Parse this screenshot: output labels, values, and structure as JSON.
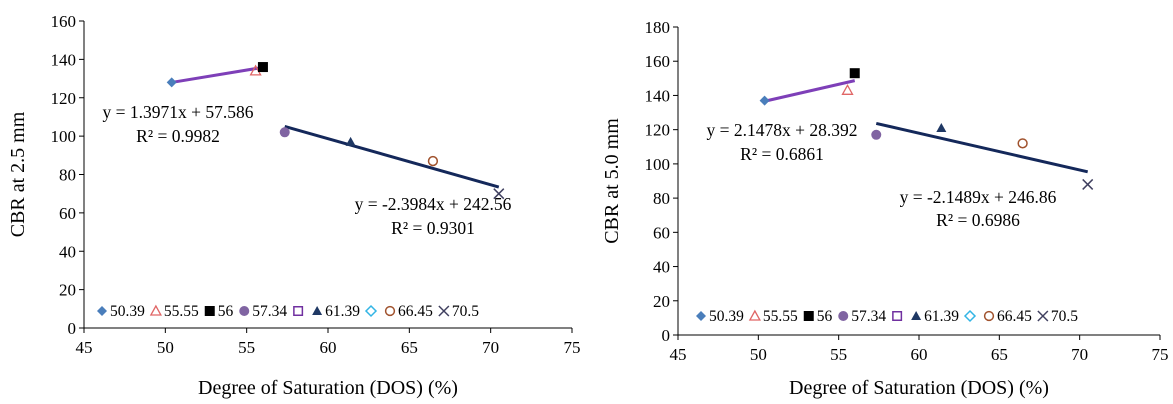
{
  "chart_data": [
    {
      "type": "scatter",
      "xlabel": "Degree of Saturation (DOS) (%)",
      "ylabel": "CBR at 2.5 mm",
      "xlim": [
        45,
        75
      ],
      "ylim": [
        0,
        160
      ],
      "xticks": [
        45,
        50,
        55,
        60,
        65,
        70,
        75
      ],
      "yticks": [
        0,
        20,
        40,
        60,
        80,
        100,
        120,
        140,
        160
      ],
      "grid": false,
      "legend_position": "bottom",
      "series": [
        {
          "name": "50.39",
          "marker": "diamond",
          "color": "#4A7EBB",
          "x": [
            50.39
          ],
          "y": [
            128
          ]
        },
        {
          "name": "55.55",
          "marker": "triangle-open",
          "color": "#E06666",
          "x": [
            55.55
          ],
          "y": [
            134
          ]
        },
        {
          "name": "56",
          "marker": "square",
          "color": "#000000",
          "x": [
            56.0
          ],
          "y": [
            136
          ]
        },
        {
          "name": "57.34",
          "marker": "circle",
          "color": "#8064A2",
          "x": [
            57.34
          ],
          "y": [
            102
          ]
        },
        {
          "name": "",
          "marker": "square-open",
          "color": "#7030A0",
          "x": [],
          "y": []
        },
        {
          "name": "61.39",
          "marker": "triangle",
          "color": "#1F3864",
          "x": [
            61.39
          ],
          "y": [
            97
          ]
        },
        {
          "name": "",
          "marker": "diamond-open",
          "color": "#33B5E5",
          "x": [],
          "y": []
        },
        {
          "name": "66.45",
          "marker": "circle-open",
          "color": "#A0522D",
          "x": [
            66.45
          ],
          "y": [
            87
          ]
        },
        {
          "name": "70.5",
          "marker": "x",
          "color": "#404060",
          "x": [
            70.5
          ],
          "y": [
            70
          ]
        }
      ],
      "trendlines": [
        {
          "slope": 1.3971,
          "intercept": 57.586,
          "x_range": [
            50.39,
            56.0
          ],
          "color": "#7E3FB8"
        },
        {
          "slope": -2.3984,
          "intercept": 242.56,
          "x_range": [
            57.34,
            70.5
          ],
          "color": "#14285A"
        }
      ],
      "annotations": [
        {
          "lines": [
            "y = 1.3971x + 57.586",
            "R² = 0.9982"
          ]
        },
        {
          "lines": [
            "y = -2.3984x + 242.56",
            "R² = 0.9301"
          ]
        }
      ]
    },
    {
      "type": "scatter",
      "xlabel": "Degree of Saturation (DOS) (%)",
      "ylabel": "CBR at 5.0 mm",
      "xlim": [
        45,
        75
      ],
      "ylim": [
        0,
        180
      ],
      "xticks": [
        45,
        50,
        55,
        60,
        65,
        70,
        75
      ],
      "yticks": [
        0,
        20,
        40,
        60,
        80,
        100,
        120,
        140,
        160,
        180
      ],
      "grid": false,
      "legend_position": "bottom",
      "series": [
        {
          "name": "50.39",
          "marker": "diamond",
          "color": "#4A7EBB",
          "x": [
            50.39
          ],
          "y": [
            137
          ]
        },
        {
          "name": "55.55",
          "marker": "triangle-open",
          "color": "#E06666",
          "x": [
            55.55
          ],
          "y": [
            143
          ]
        },
        {
          "name": "56",
          "marker": "square",
          "color": "#000000",
          "x": [
            56.0
          ],
          "y": [
            153
          ]
        },
        {
          "name": "57.34",
          "marker": "circle",
          "color": "#8064A2",
          "x": [
            57.34
          ],
          "y": [
            117
          ]
        },
        {
          "name": "",
          "marker": "square-open",
          "color": "#7030A0",
          "x": [],
          "y": []
        },
        {
          "name": "61.39",
          "marker": "triangle",
          "color": "#1F3864",
          "x": [
            61.39
          ],
          "y": [
            121
          ]
        },
        {
          "name": "",
          "marker": "diamond-open",
          "color": "#33B5E5",
          "x": [],
          "y": []
        },
        {
          "name": "66.45",
          "marker": "circle-open",
          "color": "#A0522D",
          "x": [
            66.45
          ],
          "y": [
            112
          ]
        },
        {
          "name": "70.5",
          "marker": "x",
          "color": "#404060",
          "x": [
            70.5
          ],
          "y": [
            88
          ]
        }
      ],
      "trendlines": [
        {
          "slope": 2.1478,
          "intercept": 28.392,
          "x_range": [
            50.39,
            56.0
          ],
          "color": "#7E3FB8"
        },
        {
          "slope": -2.1489,
          "intercept": 246.86,
          "x_range": [
            57.34,
            70.5
          ],
          "color": "#14285A"
        }
      ],
      "annotations": [
        {
          "lines": [
            "y = 2.1478x + 28.392",
            "R² = 0.6861"
          ]
        },
        {
          "lines": [
            "y = -2.1489x + 246.86",
            "R² = 0.6986"
          ]
        }
      ]
    }
  ]
}
